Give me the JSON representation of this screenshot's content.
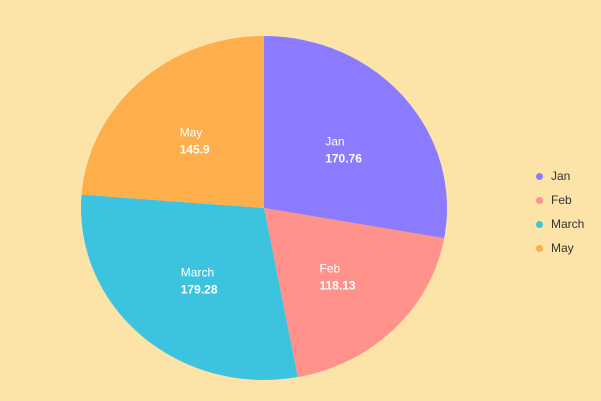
{
  "chart_data": {
    "type": "pie",
    "title": "",
    "start_angle_deg": 0,
    "legend_position": "right",
    "slices": [
      {
        "label": "Jan",
        "value": 170.76,
        "display_value": "170.76",
        "color": "#8B7BFF"
      },
      {
        "label": "Feb",
        "value": 118.13,
        "display_value": "118.13",
        "color": "#FF928A"
      },
      {
        "label": "March",
        "value": 179.28,
        "display_value": "179.28",
        "color": "#3CC3DF"
      },
      {
        "label": "May",
        "value": 145.9,
        "display_value": "145.9",
        "color": "#FFAE4C"
      }
    ]
  },
  "legend": {
    "items": [
      {
        "label": "Jan",
        "color": "#8B7BFF"
      },
      {
        "label": "Feb",
        "color": "#FF928A"
      },
      {
        "label": "March",
        "color": "#3CC3DF"
      },
      {
        "label": "May",
        "color": "#FFAE4C"
      }
    ]
  }
}
